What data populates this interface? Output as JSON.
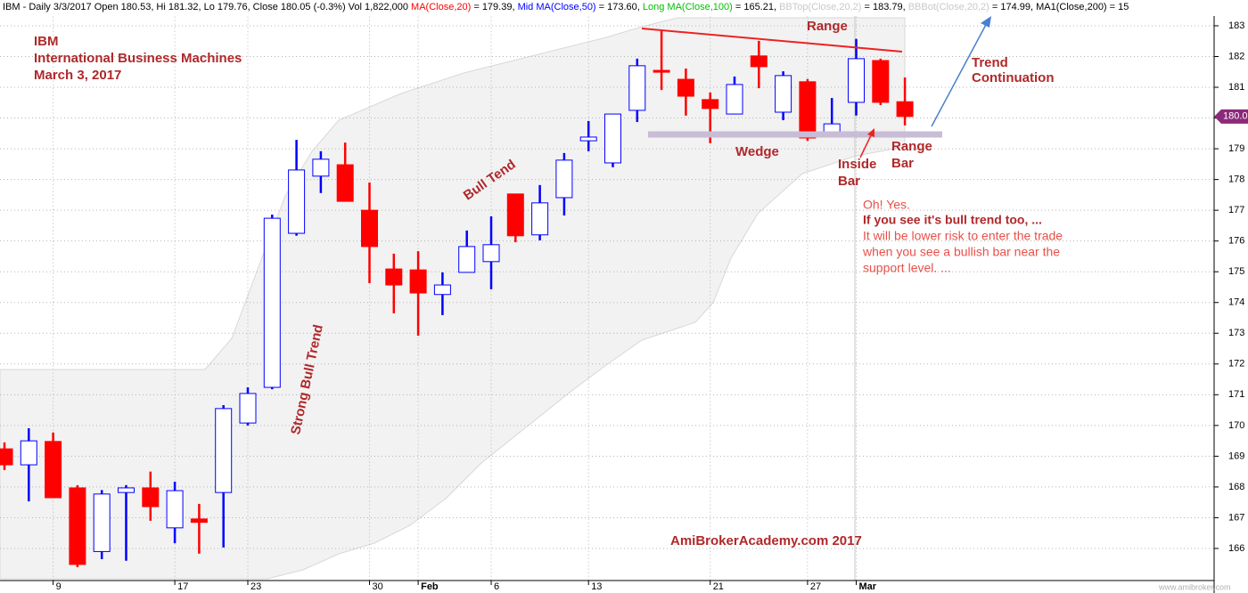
{
  "chart_data": {
    "type": "candlestick",
    "header": [
      {
        "text": "IBM - Daily 3/3/2017 Open 180.53, Hi 181.32, Lo 179.76, Close 180.05 (-0.3%) Vol 1,822,000 ",
        "color": "#000000"
      },
      {
        "text": "MA(Close,20)",
        "color": "#ff0000"
      },
      {
        "text": " = 179.39, ",
        "color": "#000000"
      },
      {
        "text": "Mid MA(Close,50)",
        "color": "#0000ff"
      },
      {
        "text": " = 173.60, ",
        "color": "#000000"
      },
      {
        "text": "Long MA(Close,100)",
        "color": "#00c000"
      },
      {
        "text": " = 165.21, ",
        "color": "#000000"
      },
      {
        "text": "BBTop(Close,20,2)",
        "color": "#c8c8c8"
      },
      {
        "text": " = 183.79, ",
        "color": "#000000"
      },
      {
        "text": "BBBot(Close,20,2)",
        "color": "#c8c8c8"
      },
      {
        "text": " = 174.99, MA1(Close,200) = 15",
        "color": "#000000"
      }
    ],
    "categories": [
      null,
      null,
      "9",
      null,
      null,
      null,
      null,
      "17",
      null,
      null,
      "23",
      null,
      null,
      null,
      null,
      "30",
      null,
      "Feb",
      null,
      null,
      "6",
      null,
      null,
      null,
      "13",
      null,
      null,
      null,
      null,
      "21",
      null,
      null,
      null,
      "27",
      null,
      "Mar",
      null,
      null
    ],
    "open": [
      169.24,
      168.72,
      169.48,
      167.97,
      165.9,
      167.82,
      167.97,
      166.67,
      166.96,
      167.82,
      170.08,
      171.24,
      176.25,
      178.11,
      178.48,
      177.0,
      175.09,
      175.06,
      174.26,
      174.98,
      175.33,
      177.53,
      176.2,
      177.41,
      179.26,
      178.54,
      180.25,
      181.55,
      181.26,
      180.6,
      180.13,
      182.02,
      180.19,
      181.18,
      179.41,
      180.51,
      181.87,
      180.53
    ],
    "high": [
      169.45,
      169.91,
      169.77,
      168.06,
      167.9,
      168.06,
      168.5,
      168.17,
      167.45,
      170.66,
      171.24,
      176.86,
      179.29,
      178.92,
      179.2,
      177.9,
      175.59,
      175.67,
      174.98,
      176.34,
      176.8,
      177.53,
      177.82,
      178.86,
      179.9,
      180.13,
      181.93,
      182.83,
      181.61,
      180.83,
      181.35,
      182.51,
      181.52,
      181.27,
      180.65,
      182.57,
      181.93,
      181.32
    ],
    "low": [
      168.55,
      167.53,
      167.65,
      165.39,
      165.65,
      165.6,
      166.9,
      166.17,
      165.83,
      166.03,
      170.0,
      171.18,
      176.17,
      177.56,
      177.29,
      174.63,
      173.65,
      172.92,
      173.59,
      174.98,
      174.43,
      175.96,
      176.02,
      176.83,
      178.92,
      178.4,
      179.87,
      180.91,
      180.08,
      179.18,
      180.13,
      180.97,
      179.93,
      179.26,
      179.41,
      180.08,
      180.42,
      179.76
    ],
    "close": [
      168.72,
      169.5,
      167.65,
      165.48,
      167.77,
      167.97,
      167.36,
      167.88,
      166.85,
      170.55,
      171.04,
      176.74,
      178.31,
      178.66,
      177.29,
      175.82,
      174.57,
      174.31,
      174.57,
      175.82,
      175.88,
      176.17,
      177.24,
      178.63,
      179.38,
      180.13,
      181.7,
      181.49,
      180.71,
      180.31,
      181.09,
      181.67,
      181.38,
      179.35,
      179.81,
      181.93,
      180.51,
      180.05
    ],
    "up_color": "#0000ff",
    "down_color": "#ff0000",
    "ylim": [
      165,
      183.3
    ],
    "yticks": [
      166,
      167,
      168,
      169,
      170,
      171,
      172,
      173,
      174,
      175,
      176,
      177,
      178,
      179,
      180,
      181,
      182,
      183
    ],
    "grid": true,
    "annotations": [
      {
        "text": "IBM"
      },
      {
        "text": "International Business Machines"
      },
      {
        "text": "March 3, 2017"
      },
      {
        "text": "Range"
      },
      {
        "text": "Trend"
      },
      {
        "text": "Continuation"
      },
      {
        "text": "Wedge"
      },
      {
        "text": "Inside"
      },
      {
        "text": "Bar"
      },
      {
        "text": "Range"
      },
      {
        "text": "Bar"
      },
      {
        "text": "Bull Tend"
      },
      {
        "text": "Strong Bull Trend"
      },
      {
        "text": "Oh! Yes."
      },
      {
        "text": "If you see it's bull trend too, ..."
      },
      {
        "text": "It will be lower risk to enter the trade"
      },
      {
        "text": "when you see a bullish bar near the"
      },
      {
        "text": "support level. ..."
      },
      {
        "text": "AmiBrokerAcademy.com  2017"
      },
      {
        "text": "www.amibroker.com"
      }
    ]
  }
}
